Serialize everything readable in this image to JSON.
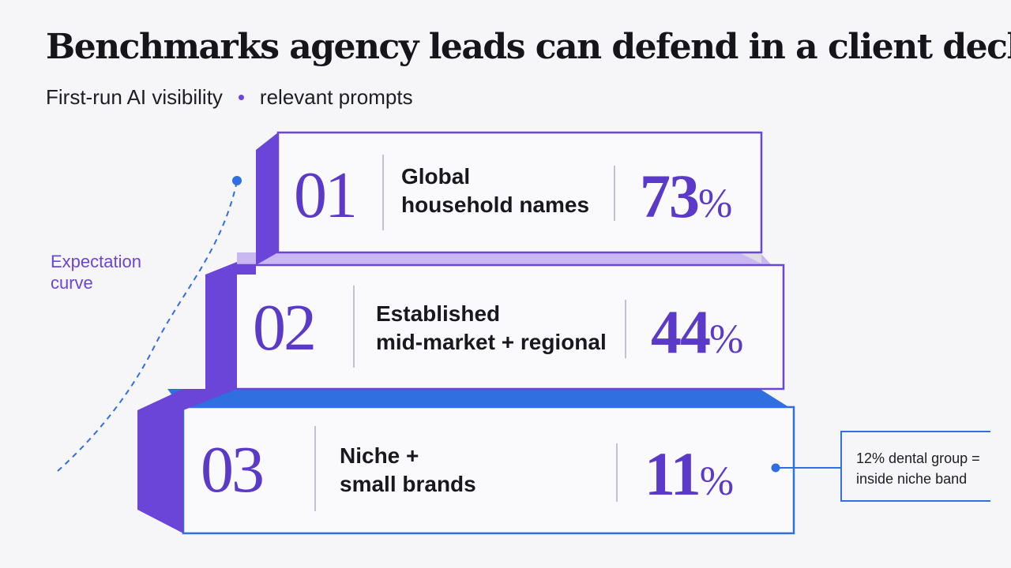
{
  "header": {
    "title": "Benchmarks agency leads can defend in a client deck",
    "subtitle_left": "First-run AI visibility",
    "subtitle_right": "relevant prompts"
  },
  "curve": {
    "label_line1": "Expectation",
    "label_line2": "curve"
  },
  "tiers": [
    {
      "number": "01",
      "label_line1": "Global",
      "label_line2": "household names",
      "percent": "73",
      "percent_sign": "%"
    },
    {
      "number": "02",
      "label_line1": "Established",
      "label_line2": "mid-market + regional",
      "percent": "44",
      "percent_sign": "%"
    },
    {
      "number": "03",
      "label_line1": "Niche +",
      "label_line2": "small brands",
      "percent": "11",
      "percent_sign": "%"
    }
  ],
  "callout": {
    "line1": "12% dental group =",
    "line2": "inside niche band"
  },
  "colors": {
    "purple": "#6a45d8",
    "number_purple": "#5b3ac9",
    "blue": "#2f6fe0",
    "lavender": "#c9b7ef",
    "side_gray": "#dcdce1"
  }
}
